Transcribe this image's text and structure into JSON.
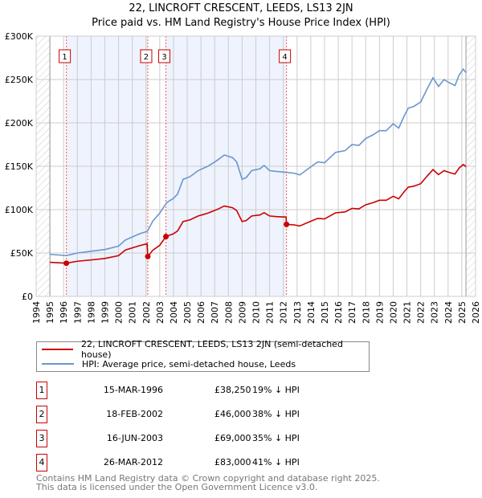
{
  "title": "22, LINCROFT CRESCENT, LEEDS, LS13 2JN",
  "subtitle": "Price paid vs. HM Land Registry's House Price Index (HPI)",
  "colors": {
    "property": "#cc0000",
    "hpi": "#6a96d0",
    "shade": "#eef3fd"
  },
  "chart_data": {
    "type": "line",
    "title": "Price paid vs. HM Land Registry's House Price Index (HPI)",
    "xlim": [
      1994,
      2026
    ],
    "ylim": [
      0,
      300000
    ],
    "yticks": [
      {
        "v": 0,
        "label": "£0"
      },
      {
        "v": 50000,
        "label": "£50K"
      },
      {
        "v": 100000,
        "label": "£100K"
      },
      {
        "v": 150000,
        "label": "£150K"
      },
      {
        "v": 200000,
        "label": "£200K"
      },
      {
        "v": 250000,
        "label": "£250K"
      },
      {
        "v": 300000,
        "label": "£300K"
      }
    ],
    "xticks": [
      "1994",
      "1995",
      "1996",
      "1997",
      "1998",
      "1999",
      "2000",
      "2001",
      "2002",
      "2003",
      "2004",
      "2005",
      "2006",
      "2007",
      "2008",
      "2009",
      "2010",
      "2011",
      "2012",
      "2013",
      "2014",
      "2015",
      "2016",
      "2017",
      "2018",
      "2019",
      "2020",
      "2021",
      "2022",
      "2023",
      "2024",
      "2025",
      "2026"
    ],
    "grid": true,
    "data_range": [
      1995,
      2025.3
    ],
    "shaded_periods": [
      [
        1996.2,
        2002.13
      ],
      [
        2003.45,
        2012.23
      ]
    ],
    "series": [
      {
        "name": "22, LINCROFT CRESCENT, LEEDS, LS13 2JN (semi-detached house)",
        "color": "#cc0000",
        "x": [
          1995,
          1996.2,
          1997,
          1998,
          1999,
          2000,
          2000.5,
          2001.5,
          2002.08,
          2002.13,
          2002.5,
          2003,
          2003.45,
          2004,
          2004.3,
          2004.7,
          2005.2,
          2005.8,
          2006.5,
          2007.2,
          2007.7,
          2008.3,
          2008.6,
          2009,
          2009.3,
          2009.7,
          2010.3,
          2010.6,
          2011,
          2011.5,
          2012.2,
          2012.23,
          2012.8,
          2013.2,
          2013.8,
          2014.5,
          2015,
          2015.8,
          2016.5,
          2017,
          2017.5,
          2018,
          2018.5,
          2019,
          2019.5,
          2020,
          2020.4,
          2020.8,
          2021.1,
          2021.5,
          2022,
          2022.5,
          2022.9,
          2023.3,
          2023.7,
          2024,
          2024.5,
          2024.8,
          2025.1,
          2025.3
        ],
        "y": [
          39300,
          38250,
          40500,
          42000,
          43700,
          47000,
          53500,
          58300,
          60700,
          46000,
          53300,
          58900,
          69000,
          72200,
          75400,
          86300,
          88200,
          92700,
          95900,
          100300,
          104200,
          102200,
          99000,
          86300,
          87500,
          92700,
          93900,
          96500,
          92700,
          92000,
          91400,
          83000,
          82400,
          81200,
          85300,
          89900,
          89300,
          96300,
          97400,
          101500,
          100900,
          105600,
          107900,
          110800,
          110800,
          115400,
          112500,
          120600,
          125900,
          127000,
          129900,
          139200,
          146200,
          140400,
          145000,
          143300,
          141000,
          147900,
          152000,
          149600
        ]
      },
      {
        "name": "HPI: Average price, semi-detached house, Leeds",
        "color": "#6a96d0",
        "x": [
          1995,
          1996.2,
          1997,
          1998,
          1999,
          2000,
          2000.5,
          2001.5,
          2002.1,
          2002.5,
          2003,
          2003.5,
          2004,
          2004.3,
          2004.7,
          2005.2,
          2005.8,
          2006.5,
          2007.2,
          2007.7,
          2008.3,
          2008.6,
          2009,
          2009.3,
          2009.7,
          2010.3,
          2010.6,
          2011,
          2011.5,
          2012.2,
          2012.8,
          2013.2,
          2013.8,
          2014.5,
          2015,
          2015.8,
          2016.5,
          2017,
          2017.5,
          2018,
          2018.5,
          2019,
          2019.5,
          2020,
          2020.4,
          2020.8,
          2021.1,
          2021.5,
          2022,
          2022.5,
          2022.9,
          2023.3,
          2023.7,
          2024,
          2024.5,
          2024.8,
          2025.1,
          2025.3
        ],
        "y": [
          48500,
          47000,
          50000,
          52000,
          54000,
          58000,
          65000,
          72000,
          75000,
          87000,
          96000,
          108000,
          113000,
          118000,
          135000,
          138000,
          145000,
          150000,
          157000,
          163000,
          160000,
          155000,
          135000,
          137000,
          145000,
          147000,
          151000,
          145000,
          144000,
          143000,
          142000,
          140000,
          147000,
          155000,
          154000,
          166000,
          168000,
          175000,
          174000,
          182000,
          186000,
          191000,
          191000,
          199000,
          194000,
          208000,
          217000,
          219000,
          224000,
          240000,
          252000,
          242000,
          250000,
          247000,
          243000,
          255000,
          262000,
          258000
        ]
      }
    ],
    "sales": [
      {
        "n": "1",
        "x": 1996.2,
        "y": 38250
      },
      {
        "n": "2",
        "x": 2002.13,
        "y": 46000
      },
      {
        "n": "3",
        "x": 2003.45,
        "y": 69000
      },
      {
        "n": "4",
        "x": 2012.23,
        "y": 83000
      }
    ]
  },
  "legend": {
    "property": "22, LINCROFT CRESCENT, LEEDS, LS13 2JN (semi-detached house)",
    "hpi": "HPI: Average price, semi-detached house, Leeds"
  },
  "transactions": [
    {
      "n": "1",
      "date": "15-MAR-1996",
      "price": "£38,250",
      "hpi": "19% ↓ HPI"
    },
    {
      "n": "2",
      "date": "18-FEB-2002",
      "price": "£46,000",
      "hpi": "38% ↓ HPI"
    },
    {
      "n": "3",
      "date": "16-JUN-2003",
      "price": "£69,000",
      "hpi": "35% ↓ HPI"
    },
    {
      "n": "4",
      "date": "26-MAR-2012",
      "price": "£83,000",
      "hpi": "41% ↓ HPI"
    }
  ],
  "footer": {
    "line1": "Contains HM Land Registry data © Crown copyright and database right 2025.",
    "line2": "This data is licensed under the Open Government Licence v3.0."
  }
}
